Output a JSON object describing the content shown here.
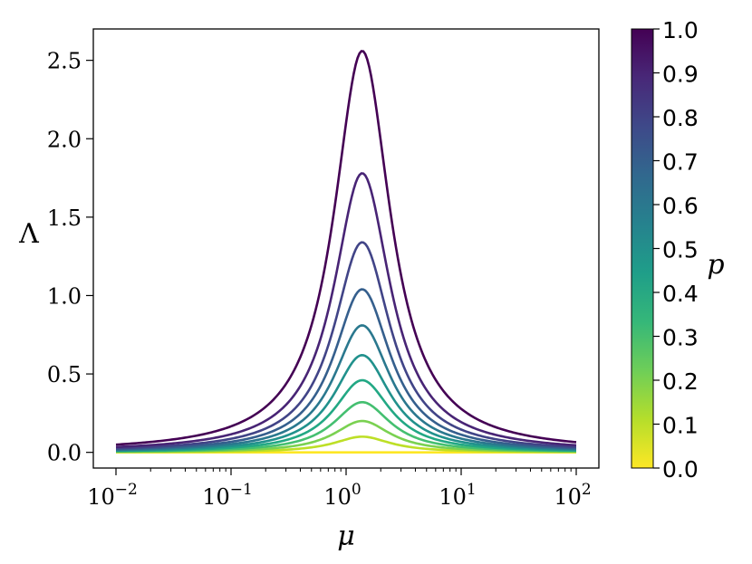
{
  "chart_data": {
    "type": "line",
    "xlabel": "μ",
    "ylabel": "Λ",
    "xscale": "log",
    "xlim": [
      0.01,
      100
    ],
    "ylim": [
      -0.1,
      2.7
    ],
    "x_ticks": [
      {
        "value": 0.01,
        "base": "10",
        "exp": "−2"
      },
      {
        "value": 0.1,
        "base": "10",
        "exp": "−1"
      },
      {
        "value": 1,
        "base": "10",
        "exp": "0"
      },
      {
        "value": 10,
        "base": "10",
        "exp": "1"
      },
      {
        "value": 100,
        "base": "10",
        "exp": "2"
      }
    ],
    "y_ticks": [
      "0.0",
      "0.5",
      "1.0",
      "1.5",
      "2.0",
      "2.5"
    ],
    "y_tick_values": [
      0.0,
      0.5,
      1.0,
      1.5,
      2.0,
      2.5
    ],
    "peak_x": 1.38,
    "series": [
      {
        "p": 0.0,
        "peak": 0.0,
        "color": "#fde725"
      },
      {
        "p": 0.1,
        "peak": 0.1,
        "color": "#bddf26"
      },
      {
        "p": 0.2,
        "peak": 0.2,
        "color": "#7ad151"
      },
      {
        "p": 0.3,
        "peak": 0.32,
        "color": "#44bf70"
      },
      {
        "p": 0.4,
        "peak": 0.46,
        "color": "#22a884"
      },
      {
        "p": 0.5,
        "peak": 0.62,
        "color": "#21918c"
      },
      {
        "p": 0.6,
        "peak": 0.81,
        "color": "#2a788e"
      },
      {
        "p": 0.7,
        "peak": 1.04,
        "color": "#355f8d"
      },
      {
        "p": 0.8,
        "peak": 1.34,
        "color": "#414487"
      },
      {
        "p": 0.9,
        "peak": 1.78,
        "color": "#482475"
      },
      {
        "p": 1.0,
        "peak": 2.56,
        "color": "#440154"
      }
    ],
    "colorbar": {
      "label": "p",
      "range": [
        0.0,
        1.0
      ],
      "ticks": [
        "0.0",
        "0.1",
        "0.2",
        "0.3",
        "0.4",
        "0.5",
        "0.6",
        "0.7",
        "0.8",
        "0.9",
        "1.0"
      ],
      "colormap": [
        "#fde725",
        "#b5de2b",
        "#6ece58",
        "#35b779",
        "#1f9e89",
        "#26828e",
        "#31688e",
        "#3e4989",
        "#482878",
        "#440154"
      ]
    },
    "grid": false
  }
}
